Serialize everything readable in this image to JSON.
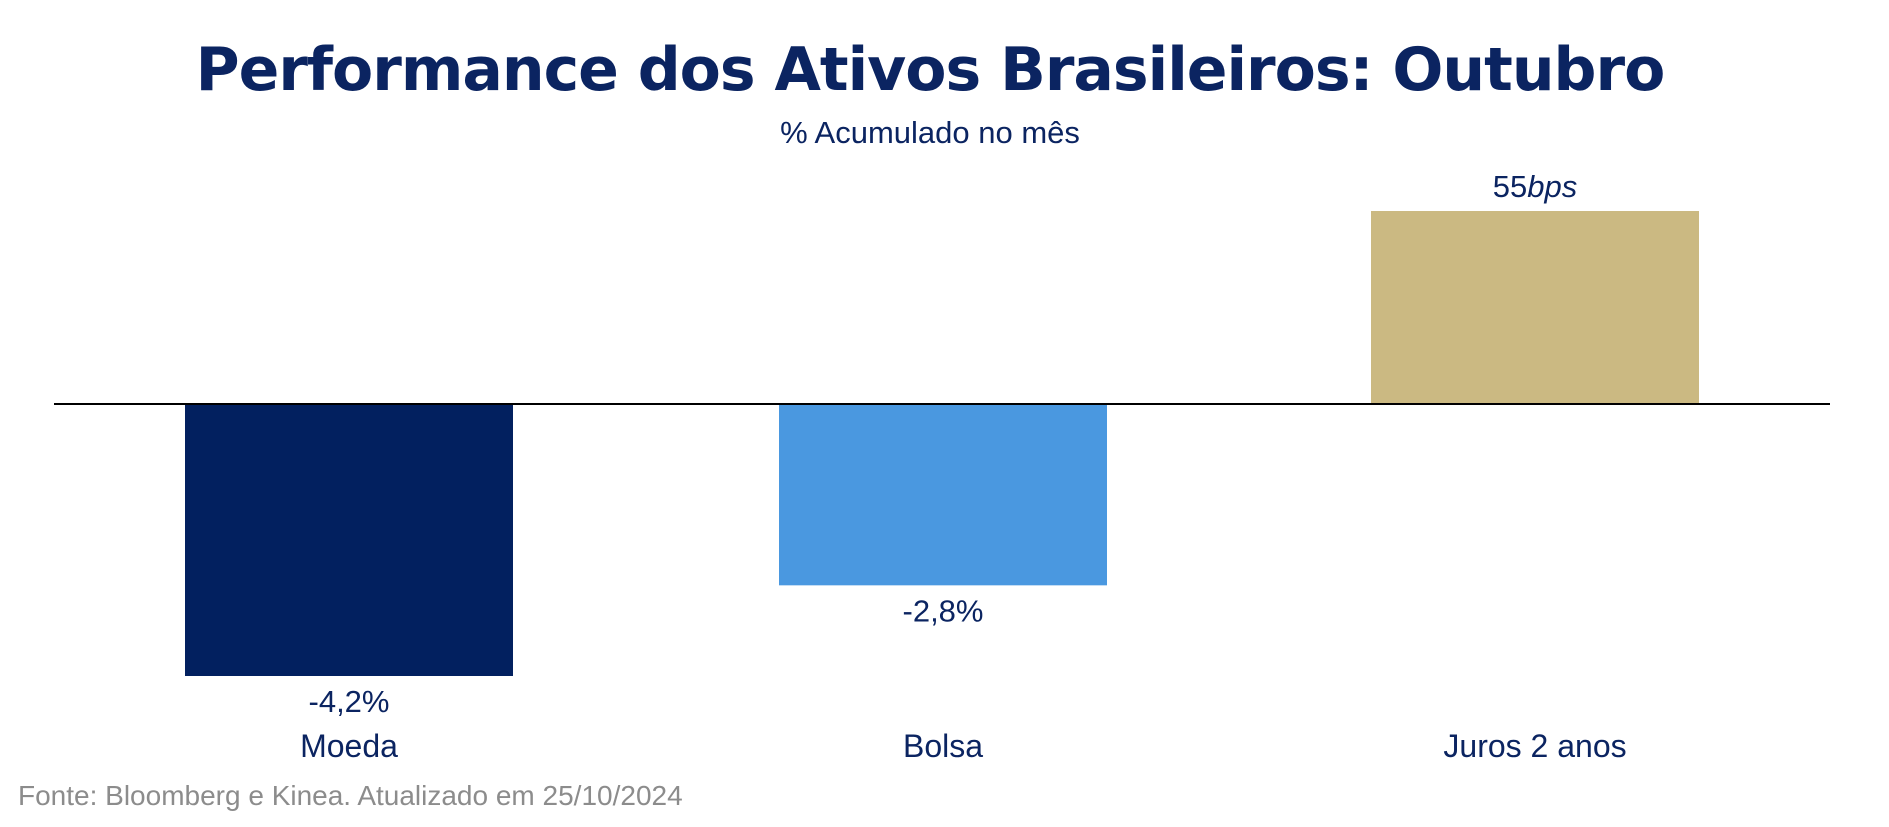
{
  "chart_data": {
    "type": "bar",
    "title": "Performance dos Ativos Brasileiros: Outubro",
    "subtitle": "% Acumulado no mês",
    "categories": [
      "Moeda",
      "Bolsa",
      "Juros 2 anos"
    ],
    "values": [
      -4.2,
      -2.8,
      55
    ],
    "units": [
      "%",
      "%",
      "bps"
    ],
    "data_labels": [
      {
        "number": "-4,2",
        "unit": "%"
      },
      {
        "number": "-2,8",
        "unit": "%"
      },
      {
        "number": "55",
        "unit": "bps"
      }
    ],
    "colors": [
      "#02205f",
      "#4a98e0",
      "#cbb982"
    ],
    "text_color": "#0b2461",
    "xlabel": "",
    "ylabel": "",
    "grid": false,
    "legend": "none",
    "source": "Fonte: Bloomberg e Kinea. Atualizado em 25/10/2024"
  }
}
